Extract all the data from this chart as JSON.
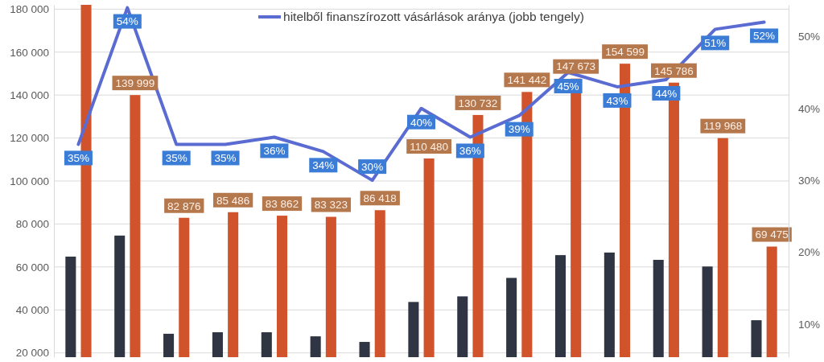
{
  "chart_data": {
    "type": "bar",
    "categories": [
      null,
      null,
      null,
      null,
      null,
      null,
      null,
      null,
      null,
      null,
      null,
      null,
      null,
      null,
      null
    ],
    "series": [
      {
        "color": "#2f3542",
        "values": [
          64800,
          74600,
          28900,
          29600,
          29600,
          27700,
          25100,
          43700,
          46300,
          54900,
          65500,
          66700,
          63300,
          60200,
          35200
        ]
      },
      {
        "color": "#d1532b",
        "values": [
          182000,
          139999,
          82876,
          85486,
          83862,
          83323,
          86418,
          110480,
          130732,
          141442,
          147673,
          154599,
          145786,
          119968,
          69475
        ],
        "value_labels": [
          null,
          "139 999",
          "82 876",
          "85 486",
          "83 862",
          "83 323",
          "86 418",
          "110 480",
          "130 732",
          "141 442",
          "147 673",
          "154 599",
          "145 786",
          "119 968",
          "69 475"
        ]
      },
      {
        "type": "line",
        "axis": "y2",
        "name": "hitelből finanszírozott vásárlások aránya (jobb tengely)",
        "color": "#5a6bd1",
        "values": [
          35,
          54,
          35,
          35,
          36,
          34,
          30,
          40,
          36,
          39,
          45,
          43,
          44,
          51,
          52
        ],
        "value_labels": [
          "35%",
          "54%",
          "35%",
          "35%",
          "36%",
          "34%",
          "30%",
          "40%",
          "36%",
          "39%",
          "45%",
          "43%",
          "44%",
          "51%",
          "52%"
        ]
      }
    ],
    "ylim": [
      18000,
      182000
    ],
    "yticks": [
      {
        "value": 20000,
        "label": "20 000"
      },
      {
        "value": 40000,
        "label": "40 000"
      },
      {
        "value": 60000,
        "label": "60 000"
      },
      {
        "value": 80000,
        "label": "80 000"
      },
      {
        "value": 100000,
        "label": "100 000"
      },
      {
        "value": 120000,
        "label": "120 000"
      },
      {
        "value": 140000,
        "label": "140 000"
      },
      {
        "value": 160000,
        "label": "160 000"
      },
      {
        "value": 180000,
        "label": "180 000"
      }
    ],
    "y2lim": [
      5.4,
      54.4
    ],
    "y2ticks": [
      {
        "value": 10,
        "label": "10%"
      },
      {
        "value": 20,
        "label": "20%"
      },
      {
        "value": 30,
        "label": "30%"
      },
      {
        "value": 40,
        "label": "40%"
      },
      {
        "value": 50,
        "label": "50%"
      }
    ],
    "grid": "y",
    "legend": "top"
  }
}
